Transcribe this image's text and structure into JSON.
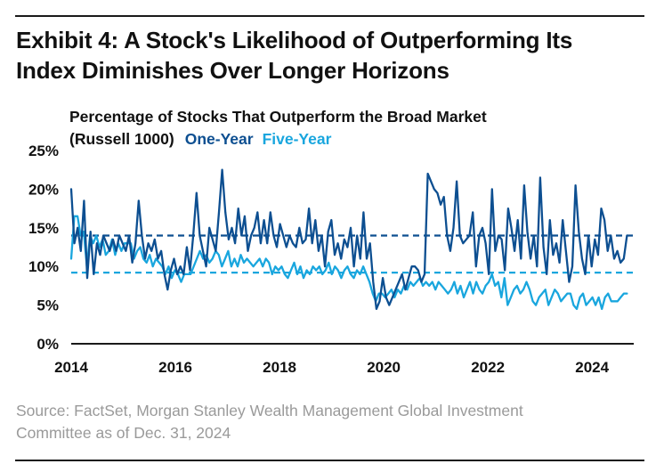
{
  "header": {
    "title_line1": "Exhibit 4: A Stock's Likelihood of Outperforming Its",
    "title_line2": "Index Diminishes Over Longer Horizons"
  },
  "chart_data": {
    "type": "line",
    "title_line1": "Percentage of Stocks That Outperform the Broad Market",
    "title_line2": "(Russell 1000)",
    "x_start": 2014.0,
    "x_end": 2024.67,
    "xlim": [
      2014,
      2024.8
    ],
    "ylim": [
      0,
      25
    ],
    "x_ticks": [
      2014,
      2016,
      2018,
      2020,
      2022,
      2024
    ],
    "x_tick_labels": [
      "2014",
      "2016",
      "2018",
      "2020",
      "2022",
      "2024"
    ],
    "y_ticks": [
      0,
      5,
      10,
      15,
      20,
      25
    ],
    "y_tick_labels": [
      "0%",
      "5%",
      "10%",
      "15%",
      "20%",
      "25%"
    ],
    "legend_placement": "top, inline with title",
    "series": [
      {
        "name": "One-Year",
        "color": "#0d4f91",
        "average": 14,
        "values": [
          20,
          13,
          15,
          12,
          18.5,
          8.5,
          14.5,
          9,
          13,
          11.5,
          14,
          13,
          12,
          13.5,
          12,
          14,
          13,
          12,
          14,
          10.5,
          13,
          18.5,
          14,
          11,
          13,
          12,
          13.5,
          11,
          12,
          9,
          7,
          9.5,
          11,
          9,
          10,
          9,
          12.5,
          9.5,
          14,
          19.5,
          14,
          12,
          10,
          15,
          13.5,
          12,
          17,
          22.5,
          17,
          13.5,
          15,
          13,
          17.5,
          14,
          16.5,
          12,
          14,
          15,
          17,
          13,
          16,
          13,
          17,
          14,
          12.5,
          15.5,
          14,
          12.5,
          14,
          13,
          12.5,
          15,
          13,
          13.5,
          17.5,
          13,
          16,
          12,
          14,
          10,
          14.5,
          16,
          11.5,
          13,
          11,
          13.5,
          12.5,
          15,
          10,
          14,
          11,
          17,
          11,
          13,
          8,
          4.5,
          5.5,
          8.5,
          6,
          5,
          6,
          7,
          8,
          9,
          7,
          8.5,
          10,
          10,
          9.5,
          8,
          9,
          22,
          21,
          20,
          19.5,
          18,
          19,
          14,
          12,
          15,
          21,
          14,
          13,
          13.5,
          14,
          17,
          10,
          14,
          15,
          13,
          9,
          20,
          12,
          14,
          13.5,
          9.5,
          17.5,
          15,
          12,
          16,
          11,
          20.5,
          14.5,
          11,
          14,
          10,
          21.5,
          12.5,
          9,
          16,
          11.5,
          13,
          10.5,
          16,
          12,
          8,
          10,
          20.5,
          14.5,
          11,
          9,
          14,
          10,
          13.5,
          11.5,
          17.5,
          16,
          12,
          14,
          11,
          12,
          10.5,
          11,
          14
        ]
      },
      {
        "name": "Five-Year",
        "color": "#19a6de",
        "average": 9.2,
        "values": [
          11,
          16.5,
          16.5,
          14,
          14.5,
          10,
          14,
          13,
          14,
          12.5,
          13.5,
          11.5,
          12,
          13.5,
          11.5,
          13,
          12,
          13,
          13,
          13,
          11,
          12,
          12.5,
          11,
          10.5,
          11.5,
          10,
          11,
          10.5,
          10,
          9,
          10,
          8.5,
          9.5,
          9,
          8,
          9,
          9,
          9,
          10,
          11,
          12,
          11,
          11.5,
          10.5,
          11,
          12,
          11.5,
          10,
          11,
          12,
          10,
          11,
          10,
          11.5,
          10.5,
          11,
          10.5,
          10,
          10.5,
          11,
          10,
          11,
          10.5,
          9,
          10,
          9.5,
          10,
          9,
          8.5,
          9.5,
          10.5,
          9,
          10,
          8.5,
          9.5,
          9,
          10,
          9.5,
          10,
          9,
          9.5,
          10.5,
          9,
          10,
          9.5,
          8.5,
          9.5,
          10,
          9,
          8.5,
          9.5,
          9,
          10,
          9,
          8,
          6.5,
          5.5,
          6.5,
          6.5,
          6,
          6.5,
          7,
          6,
          7,
          6.5,
          7.5,
          7,
          8,
          7.5,
          8,
          8.5,
          7.5,
          8,
          7.5,
          8,
          7,
          8,
          7.5,
          7,
          6.5,
          7,
          8,
          6.5,
          7.5,
          6,
          7,
          8,
          6.5,
          8,
          7,
          6.5,
          7.5,
          8,
          9,
          7.5,
          8,
          6,
          8.5,
          5,
          6,
          7,
          7.5,
          6.5,
          7,
          8,
          7,
          5.5,
          5,
          6,
          6.5,
          7,
          5,
          6,
          7,
          6.5,
          5.5,
          6,
          6.5,
          6.5,
          5,
          4.5,
          6,
          6.5,
          5,
          5.5,
          6,
          5,
          6,
          4.5,
          6,
          6.5,
          5.5,
          5.5,
          5.5,
          6,
          6.5,
          6.5
        ]
      }
    ]
  },
  "footer": {
    "source_line1": "Source: FactSet, Morgan Stanley Wealth Management Global Investment",
    "source_line2": "Committee as of Dec. 31, 2024"
  }
}
